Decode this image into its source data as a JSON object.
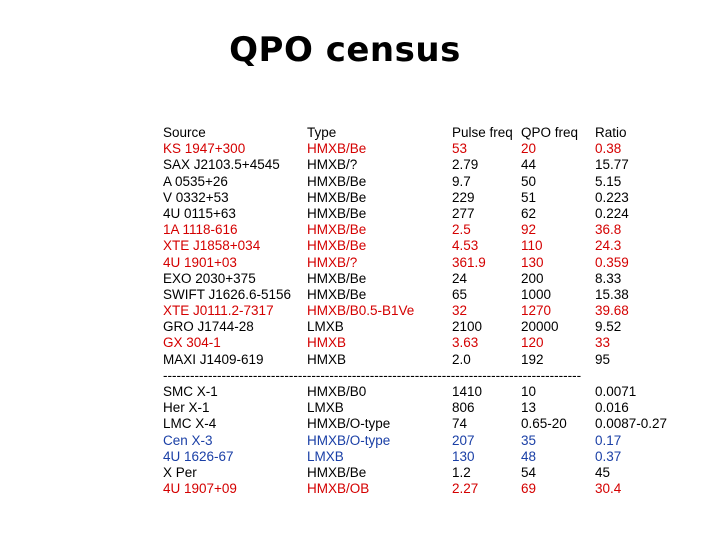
{
  "title": "QPO census",
  "colors": {
    "red": "#d40000",
    "blue": "#1a3fa6",
    "black": "#000000"
  },
  "header": [
    "Source",
    "Type",
    "Pulse freq",
    "QPO freq",
    "Ratio"
  ],
  "group1": [
    {
      "cells": [
        "KS 1947+300",
        "HMXB/Be",
        "53",
        "20",
        "0.38"
      ],
      "color": "red"
    },
    {
      "cells": [
        "SAX J2103.5+4545",
        "HMXB/?",
        "2.79",
        "44",
        "15.77"
      ],
      "color": "black"
    },
    {
      "cells": [
        "A 0535+26",
        "HMXB/Be",
        "9.7",
        "50",
        "5.15"
      ],
      "color": "black"
    },
    {
      "cells": [
        "V 0332+53",
        "HMXB/Be",
        "229",
        "51",
        "0.223"
      ],
      "color": "black"
    },
    {
      "cells": [
        "4U 0115+63",
        "HMXB/Be",
        "277",
        "62",
        "0.224"
      ],
      "color": "black"
    },
    {
      "cells": [
        "1A 1118-616",
        "HMXB/Be",
        "2.5",
        "92",
        "36.8"
      ],
      "color": "red"
    },
    {
      "cells": [
        "XTE J1858+034",
        "HMXB/Be",
        "4.53",
        "110",
        "24.3"
      ],
      "color": "red"
    },
    {
      "cells": [
        "4U 1901+03",
        "HMXB/?",
        "361.9",
        "130",
        "0.359"
      ],
      "color": "red"
    },
    {
      "cells": [
        "EXO 2030+375",
        "HMXB/Be",
        "24",
        "200",
        "8.33"
      ],
      "color": "black"
    },
    {
      "cells": [
        "SWIFT J1626.6-5156",
        "HMXB/Be",
        "65",
        "1000",
        "15.38"
      ],
      "color": "black"
    },
    {
      "cells": [
        "XTE J0111.2-7317",
        "HMXB/B0.5-B1Ve",
        "32",
        "1270",
        "39.68"
      ],
      "color": "red"
    },
    {
      "cells": [
        "GRO J1744-28",
        "LMXB",
        "2100",
        "20000",
        "9.52"
      ],
      "color": "black"
    },
    {
      "cells": [
        "GX 304-1",
        "HMXB",
        "3.63",
        "120",
        "33"
      ],
      "color": "red"
    },
    {
      "cells": [
        "MAXI J1409-619",
        "HMXB",
        "2.0",
        "192",
        "95"
      ],
      "color": "black"
    }
  ],
  "separator": "---------------------------------------------------------------------------------------------",
  "group2": [
    {
      "cells": [
        "SMC X-1",
        "HMXB/B0",
        "1410",
        "10",
        "0.0071"
      ],
      "color": "black"
    },
    {
      "cells": [
        "Her X-1",
        "LMXB",
        "806",
        "13",
        "0.016"
      ],
      "color": "black"
    },
    {
      "cells": [
        "LMC X-4",
        "HMXB/O-type",
        "74",
        "0.65-20",
        "0.0087-0.27"
      ],
      "color": "black"
    },
    {
      "cells": [
        "Cen X-3",
        "HMXB/O-type",
        "207",
        "35",
        "0.17"
      ],
      "color": "blue"
    },
    {
      "cells": [
        "4U 1626-67",
        "LMXB",
        "130",
        "48",
        "0.37"
      ],
      "color": "blue"
    },
    {
      "cells": [
        "X Per",
        "HMXB/Be",
        "1.2",
        "54",
        "45"
      ],
      "color": "black"
    },
    {
      "cells": [
        "4U 1907+09",
        "HMXB/OB",
        "2.27",
        "69",
        "30.4"
      ],
      "color": "red"
    }
  ]
}
